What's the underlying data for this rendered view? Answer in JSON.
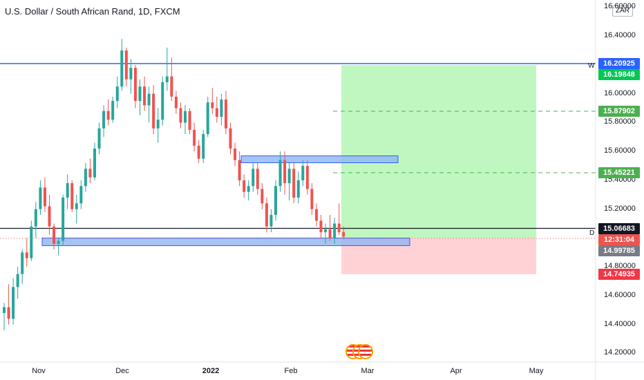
{
  "header": {
    "title": "U.S. Dollar / South African Rand, 1D, FXCM",
    "currency_badge": "ZAR"
  },
  "y_axis": {
    "ticks": [
      "16.60000",
      "16.40000",
      "16.00000",
      "15.80000",
      "15.60000",
      "15.40000",
      "15.20000",
      "14.80000",
      "14.60000",
      "14.40000",
      "14.20000"
    ],
    "tick_values": [
      16.6,
      16.4,
      16.0,
      15.8,
      15.6,
      15.4,
      15.2,
      14.8,
      14.6,
      14.4,
      14.2
    ]
  },
  "x_axis": {
    "labels": [
      {
        "text": "Nov",
        "bold": false
      },
      {
        "text": "Dec",
        "bold": false
      },
      {
        "text": "2022",
        "bold": true
      },
      {
        "text": "Feb",
        "bold": false
      },
      {
        "text": "Mar",
        "bold": false
      },
      {
        "text": "Apr",
        "bold": false
      },
      {
        "text": "May",
        "bold": false
      }
    ]
  },
  "price_badges": [
    {
      "text": "16.20925",
      "value": 16.20925,
      "color": "#2962ff"
    },
    {
      "text": "16.19848",
      "value": 16.19848,
      "color": "#00c853"
    },
    {
      "text": "15.87902",
      "value": 15.87902,
      "color": "#4caf50"
    },
    {
      "text": "15.45221",
      "value": 15.45221,
      "color": "#4caf50"
    },
    {
      "text": "15.06683",
      "value": 15.06683,
      "color": "#131722"
    },
    {
      "text": "12:31:04",
      "value": 15.028,
      "color": "#ef5350"
    },
    {
      "text": "14.99785",
      "value": 14.99785,
      "color": "#787b86"
    },
    {
      "text": "14.74935",
      "value": 14.74935,
      "color": "#f23645"
    }
  ],
  "line_markers": {
    "w": "W",
    "d": "D"
  },
  "colors": {
    "up": "#26a69a",
    "down": "#ef5350",
    "resistance": "#2962ff",
    "support_line": "#131722",
    "target": "#4caf50"
  },
  "chart_data": {
    "type": "candlestick",
    "title": "U.S. Dollar / South African Rand, 1D, FXCM",
    "ylim": [
      14.14,
      16.65
    ],
    "horizontal_lines": [
      16.20925,
      15.06683
    ],
    "targets": [
      15.87902,
      15.45221
    ],
    "zones": [
      {
        "from": 15.53,
        "to": 15.56
      },
      {
        "from": 14.96,
        "to": 14.99
      }
    ],
    "position": {
      "entry": 14.99785,
      "take_profit": 16.19848,
      "stop_loss": 14.74935
    },
    "candles": [
      [
        14.48,
        14.55,
        14.36,
        14.52
      ],
      [
        14.52,
        14.68,
        14.4,
        14.44
      ],
      [
        14.44,
        14.72,
        14.4,
        14.66
      ],
      [
        14.66,
        14.8,
        14.58,
        14.75
      ],
      [
        14.75,
        14.92,
        14.68,
        14.9
      ],
      [
        14.9,
        15.0,
        14.8,
        14.86
      ],
      [
        14.86,
        15.12,
        14.84,
        15.08
      ],
      [
        15.08,
        15.25,
        15.0,
        15.2
      ],
      [
        15.2,
        15.4,
        15.16,
        15.35
      ],
      [
        15.35,
        15.42,
        15.18,
        15.22
      ],
      [
        15.22,
        15.3,
        15.02,
        15.08
      ],
      [
        15.08,
        15.1,
        14.92,
        14.96
      ],
      [
        14.96,
        15.0,
        14.88,
        14.98
      ],
      [
        14.98,
        15.3,
        14.95,
        15.28
      ],
      [
        15.28,
        15.44,
        15.2,
        15.38
      ],
      [
        15.38,
        15.4,
        15.18,
        15.2
      ],
      [
        15.2,
        15.3,
        15.1,
        15.24
      ],
      [
        15.24,
        15.4,
        15.2,
        15.36
      ],
      [
        15.36,
        15.52,
        15.32,
        15.48
      ],
      [
        15.48,
        15.55,
        15.38,
        15.42
      ],
      [
        15.42,
        15.66,
        15.4,
        15.62
      ],
      [
        15.62,
        15.8,
        15.58,
        15.76
      ],
      [
        15.76,
        15.92,
        15.7,
        15.88
      ],
      [
        15.88,
        15.96,
        15.78,
        15.82
      ],
      [
        15.82,
        15.98,
        15.8,
        15.95
      ],
      [
        15.95,
        16.12,
        15.9,
        16.05
      ],
      [
        16.05,
        16.38,
        16.02,
        16.3
      ],
      [
        16.3,
        16.32,
        16.05,
        16.1
      ],
      [
        16.1,
        16.24,
        16.0,
        16.18
      ],
      [
        16.18,
        16.2,
        15.9,
        15.95
      ],
      [
        15.95,
        16.1,
        15.85,
        16.05
      ],
      [
        16.05,
        16.12,
        15.88,
        15.92
      ],
      [
        15.92,
        16.05,
        15.8,
        16.0
      ],
      [
        16.0,
        16.06,
        15.72,
        15.76
      ],
      [
        15.76,
        15.9,
        15.66,
        15.82
      ],
      [
        15.82,
        16.12,
        15.78,
        16.08
      ],
      [
        16.08,
        16.32,
        16.02,
        16.12
      ],
      [
        16.12,
        16.25,
        15.95,
        15.98
      ],
      [
        15.98,
        16.02,
        15.86,
        15.9
      ],
      [
        15.9,
        15.94,
        15.76,
        15.8
      ],
      [
        15.8,
        15.92,
        15.72,
        15.88
      ],
      [
        15.88,
        15.9,
        15.72,
        15.75
      ],
      [
        15.75,
        15.8,
        15.6,
        15.64
      ],
      [
        15.64,
        15.68,
        15.52,
        15.55
      ],
      [
        15.55,
        15.75,
        15.52,
        15.72
      ],
      [
        15.72,
        15.98,
        15.7,
        15.94
      ],
      [
        15.94,
        16.04,
        15.86,
        15.9
      ],
      [
        15.9,
        15.98,
        15.8,
        15.84
      ],
      [
        15.84,
        16.0,
        15.78,
        15.96
      ],
      [
        15.96,
        16.02,
        15.72,
        15.76
      ],
      [
        15.76,
        15.8,
        15.58,
        15.62
      ],
      [
        15.62,
        15.66,
        15.5,
        15.54
      ],
      [
        15.54,
        15.6,
        15.36,
        15.4
      ],
      [
        15.4,
        15.44,
        15.28,
        15.32
      ],
      [
        15.32,
        15.4,
        15.26,
        15.36
      ],
      [
        15.36,
        15.52,
        15.32,
        15.48
      ],
      [
        15.48,
        15.52,
        15.3,
        15.34
      ],
      [
        15.34,
        15.38,
        15.2,
        15.24
      ],
      [
        15.24,
        15.28,
        15.04,
        15.08
      ],
      [
        15.08,
        15.2,
        15.04,
        15.16
      ],
      [
        15.16,
        15.4,
        15.12,
        15.36
      ],
      [
        15.36,
        15.6,
        15.32,
        15.54
      ],
      [
        15.54,
        15.6,
        15.3,
        15.38
      ],
      [
        15.38,
        15.52,
        15.26,
        15.48
      ],
      [
        15.48,
        15.52,
        15.24,
        15.28
      ],
      [
        15.28,
        15.46,
        15.24,
        15.4
      ],
      [
        15.4,
        15.54,
        15.36,
        15.5
      ],
      [
        15.5,
        15.54,
        15.3,
        15.34
      ],
      [
        15.34,
        15.38,
        15.16,
        15.2
      ],
      [
        15.2,
        15.24,
        15.08,
        15.12
      ],
      [
        15.12,
        15.16,
        15.0,
        15.04
      ],
      [
        15.04,
        15.1,
        14.96,
        15.06
      ],
      [
        15.06,
        15.16,
        14.98,
        15.0
      ],
      [
        15.0,
        15.14,
        14.96,
        15.1
      ],
      [
        15.1,
        15.24,
        15.02,
        15.04
      ],
      [
        15.04,
        15.08,
        14.99,
        15.01
      ]
    ]
  }
}
